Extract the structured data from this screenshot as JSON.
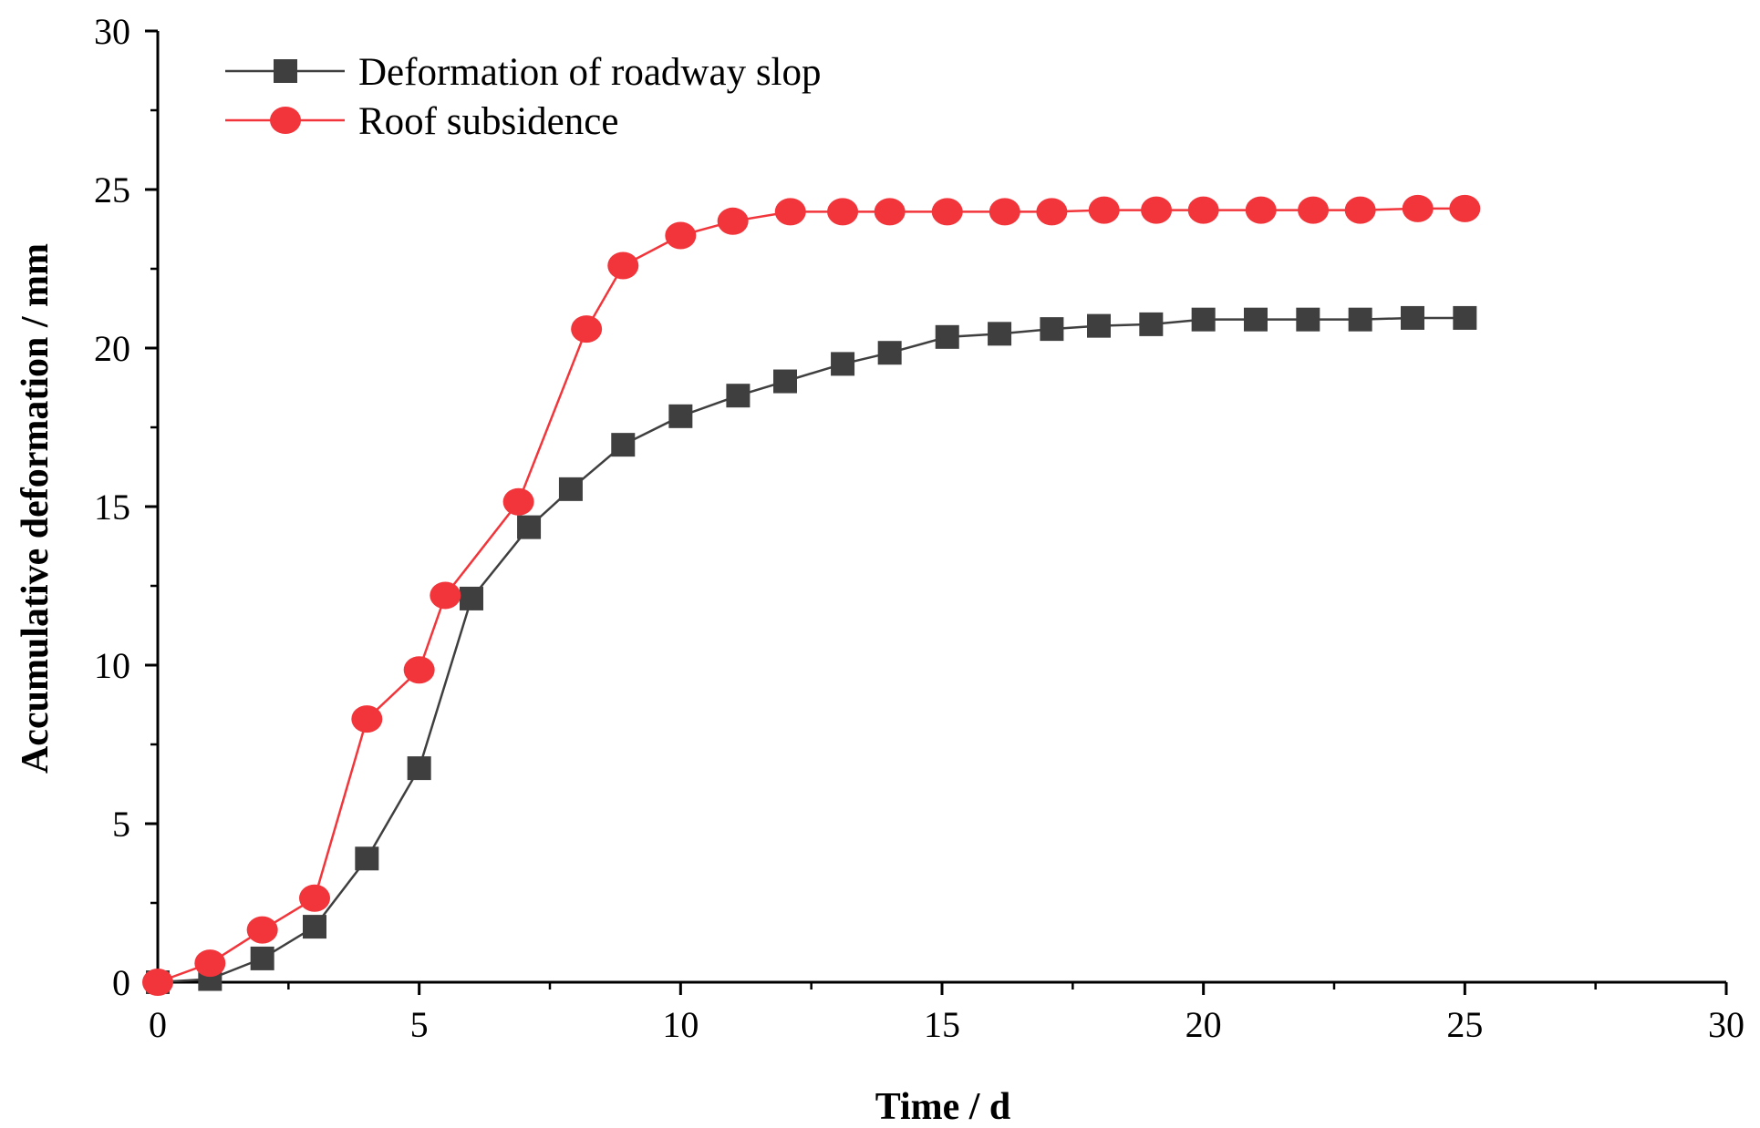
{
  "chart_data": {
    "type": "line",
    "title": "",
    "xlabel": "Time / d",
    "ylabel": "Accumulative deformation / mm",
    "xlim": [
      0,
      30
    ],
    "ylim": [
      0,
      30
    ],
    "xticks": [
      0,
      5,
      10,
      15,
      20,
      25,
      30
    ],
    "yticks": [
      0,
      5,
      10,
      15,
      20,
      25,
      30
    ],
    "x_tick_labels": [
      "0",
      "5",
      "10",
      "15",
      "20",
      "25",
      "30"
    ],
    "y_tick_labels": [
      "0",
      "5",
      "10",
      "15",
      "20",
      "25",
      "30"
    ],
    "grid": false,
    "legend_position": "top-left",
    "series": [
      {
        "name": "Deformation of roadway slop",
        "color": "#3f3f3f",
        "marker": "square",
        "x": [
          0,
          1,
          2,
          3,
          4,
          5,
          6,
          7.1,
          7.9,
          8.9,
          10,
          11.1,
          12,
          13.1,
          14,
          15.1,
          16.1,
          17.1,
          18,
          19,
          20,
          21,
          22,
          23,
          24,
          25
        ],
        "y": [
          0,
          0.1,
          0.75,
          1.75,
          3.9,
          6.75,
          12.1,
          14.35,
          15.55,
          16.95,
          17.85,
          18.5,
          18.95,
          19.5,
          19.85,
          20.35,
          20.45,
          20.6,
          20.7,
          20.75,
          20.9,
          20.9,
          20.9,
          20.9,
          20.95,
          20.95
        ]
      },
      {
        "name": "Roof subsidence",
        "color": "#f2353a",
        "marker": "circle",
        "x": [
          0,
          1,
          2,
          3,
          4,
          5,
          5.5,
          6.9,
          8.2,
          8.9,
          10,
          11,
          12.1,
          13.1,
          14,
          15.1,
          16.2,
          17.1,
          18.1,
          19.1,
          20,
          21.1,
          22.1,
          23,
          24.1,
          25
        ],
        "y": [
          0,
          0.6,
          1.65,
          2.65,
          8.3,
          9.85,
          12.2,
          15.15,
          20.6,
          22.6,
          23.55,
          24,
          24.3,
          24.3,
          24.3,
          24.3,
          24.3,
          24.3,
          24.35,
          24.35,
          24.35,
          24.35,
          24.35,
          24.35,
          24.4,
          24.4
        ]
      }
    ]
  }
}
